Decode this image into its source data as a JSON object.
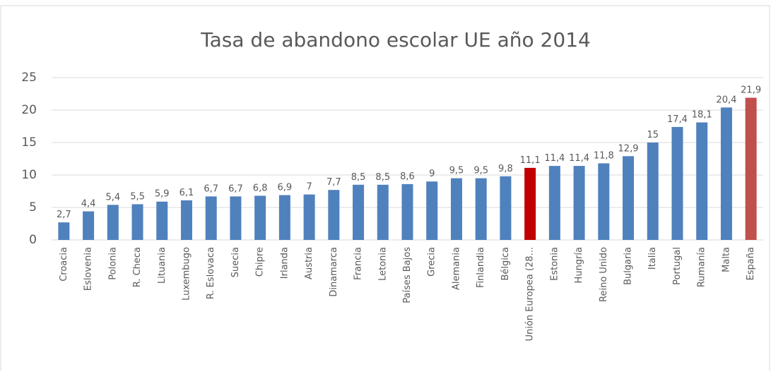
{
  "chart_data": {
    "type": "bar",
    "title": "Tasa de abandono escolar UE año 2014",
    "categories": [
      "Croacia",
      "Eslovenia",
      "Polonia",
      "R. Checa",
      "Lituania",
      "Luxembugo",
      "R. Eslovaca",
      "Suecia",
      "Chipre",
      "Irlanda",
      "Austria",
      "Dinamarca",
      "Francia",
      "Letonia",
      "Países Bajos",
      "Grecia",
      "Alemania",
      "Finlandia",
      "Bélgica",
      "Unión Europea (28...",
      "Estonia",
      "Hungría",
      "Reino Unido",
      "Bulgaria",
      "Italia",
      "Portugal",
      "Rumanía",
      "Malta",
      "España"
    ],
    "values": [
      2.7,
      4.4,
      5.4,
      5.5,
      5.9,
      6.1,
      6.7,
      6.7,
      6.8,
      6.9,
      7,
      7.7,
      8.5,
      8.5,
      8.6,
      9,
      9.5,
      9.5,
      9.8,
      11.1,
      11.4,
      11.4,
      11.8,
      12.9,
      15,
      17.4,
      18.1,
      20.4,
      21.9
    ],
    "value_labels": [
      "2,7",
      "4,4",
      "5,4",
      "5,5",
      "5,9",
      "6,1",
      "6,7",
      "6,7",
      "6,8",
      "6,9",
      "7",
      "7,7",
      "8,5",
      "8,5",
      "8,6",
      "9",
      "9,5",
      "9,5",
      "9,8",
      "11,1",
      "11,4",
      "11,4",
      "11,8",
      "12,9",
      "15",
      "17,4",
      "18,1",
      "20,4",
      "21,9"
    ],
    "colors": [
      "#4f81bd",
      "#4f81bd",
      "#4f81bd",
      "#4f81bd",
      "#4f81bd",
      "#4f81bd",
      "#4f81bd",
      "#4f81bd",
      "#4f81bd",
      "#4f81bd",
      "#4f81bd",
      "#4f81bd",
      "#4f81bd",
      "#4f81bd",
      "#4f81bd",
      "#4f81bd",
      "#4f81bd",
      "#4f81bd",
      "#4f81bd",
      "#c00000",
      "#4f81bd",
      "#4f81bd",
      "#4f81bd",
      "#4f81bd",
      "#4f81bd",
      "#4f81bd",
      "#4f81bd",
      "#4f81bd",
      "#c0504d"
    ],
    "ylim": [
      0,
      25
    ],
    "yticks": [
      0,
      5,
      10,
      15,
      20,
      25
    ],
    "grid": true
  }
}
